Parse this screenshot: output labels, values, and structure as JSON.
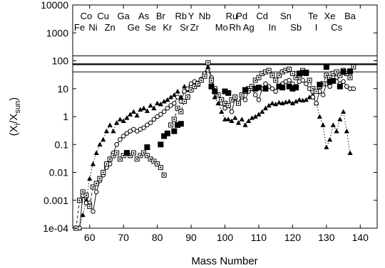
{
  "chart_data": {
    "type": "scatter",
    "title": "",
    "xlabel": "Mass Number",
    "ylabel_parts": [
      "(X",
      "i",
      "/X",
      "sun",
      ")"
    ],
    "xlim": [
      55,
      145
    ],
    "ylim": [
      0.0001,
      10000
    ],
    "yscale": "log",
    "x_ticks": [
      60,
      70,
      80,
      90,
      100,
      110,
      120,
      130,
      140
    ],
    "y_ticks": [
      {
        "value": 0.0001,
        "label": "1e-04"
      },
      {
        "value": 0.001,
        "label": "0.001"
      },
      {
        "value": 0.01,
        "label": "0.01"
      },
      {
        "value": 0.1,
        "label": "0.1"
      },
      {
        "value": 1,
        "label": "1"
      },
      {
        "value": 10,
        "label": "10"
      },
      {
        "value": 100,
        "label": "100"
      },
      {
        "value": 1000,
        "label": "1000"
      },
      {
        "value": 10000,
        "label": "10000"
      }
    ],
    "reference_lines": [
      {
        "y": 150,
        "weight": "thin"
      },
      {
        "y": 75,
        "weight": "thick"
      },
      {
        "y": 40,
        "weight": "thin"
      }
    ],
    "element_labels": [
      {
        "symbol": "Co",
        "x": 59,
        "row": 1
      },
      {
        "symbol": "Fe",
        "x": 57,
        "row": 2
      },
      {
        "symbol": "Ni",
        "x": 61,
        "row": 2
      },
      {
        "symbol": "Cu",
        "x": 64,
        "row": 1
      },
      {
        "symbol": "Zn",
        "x": 66,
        "row": 2
      },
      {
        "symbol": "Ga",
        "x": 70,
        "row": 1
      },
      {
        "symbol": "Ge",
        "x": 73,
        "row": 2
      },
      {
        "symbol": "As",
        "x": 76,
        "row": 1
      },
      {
        "symbol": "Se",
        "x": 78,
        "row": 2
      },
      {
        "symbol": "Br",
        "x": 81,
        "row": 1
      },
      {
        "symbol": "Kr",
        "x": 83,
        "row": 2
      },
      {
        "symbol": "Rb",
        "x": 87,
        "row": 1
      },
      {
        "symbol": "Sr",
        "x": 88,
        "row": 2
      },
      {
        "symbol": "Y",
        "x": 90,
        "row": 1
      },
      {
        "symbol": "Zr",
        "x": 91,
        "row": 2
      },
      {
        "symbol": "Nb",
        "x": 94,
        "row": 1
      },
      {
        "symbol": "Mo",
        "x": 99,
        "row": 2
      },
      {
        "symbol": "Ru",
        "x": 102,
        "row": 1
      },
      {
        "symbol": "Rh",
        "x": 103,
        "row": 2
      },
      {
        "symbol": "Pd",
        "x": 105,
        "row": 1
      },
      {
        "symbol": "Ag",
        "x": 107,
        "row": 2
      },
      {
        "symbol": "Cd",
        "x": 111,
        "row": 1
      },
      {
        "symbol": "In",
        "x": 114,
        "row": 2
      },
      {
        "symbol": "Sn",
        "x": 118,
        "row": 1
      },
      {
        "symbol": "Sb",
        "x": 121,
        "row": 2
      },
      {
        "symbol": "Te",
        "x": 126,
        "row": 1
      },
      {
        "symbol": "I",
        "x": 127,
        "row": 2
      },
      {
        "symbol": "Xe",
        "x": 131,
        "row": 1
      },
      {
        "symbol": "Cs",
        "x": 133,
        "row": 2
      },
      {
        "symbol": "Ba",
        "x": 137,
        "row": 1
      }
    ],
    "series": [
      {
        "marker": "triangle-filled",
        "line": "dotted",
        "points": [
          [
            56,
            0.0001
          ],
          [
            57,
            0.0001
          ],
          [
            58,
            0.0003
          ],
          [
            59,
            0.001
          ],
          [
            60,
            0.006
          ],
          [
            61,
            0.02
          ],
          [
            62,
            0.05
          ],
          [
            63,
            0.1
          ],
          [
            64,
            0.15
          ],
          [
            65,
            0.3
          ],
          [
            66,
            0.5
          ],
          [
            67,
            0.3
          ],
          [
            68,
            0.6
          ],
          [
            69,
            0.8
          ],
          [
            70,
            0.7
          ],
          [
            71,
            0.9
          ],
          [
            72,
            1.2
          ],
          [
            73,
            1.5
          ],
          [
            74,
            1.1
          ],
          [
            75,
            1.8
          ],
          [
            76,
            2.0
          ],
          [
            77,
            1.6
          ],
          [
            78,
            2.5
          ],
          [
            79,
            2.0
          ],
          [
            80,
            3.0
          ],
          [
            81,
            2.8
          ],
          [
            82,
            3.5
          ],
          [
            83,
            4.0
          ],
          [
            84,
            5.0
          ],
          [
            85,
            6.0
          ],
          [
            86,
            8.0
          ],
          [
            87,
            5.0
          ],
          [
            88,
            12
          ],
          [
            89,
            9
          ],
          [
            90,
            15
          ],
          [
            91,
            18
          ],
          [
            92,
            14
          ],
          [
            93,
            20
          ],
          [
            94,
            30
          ],
          [
            95,
            60
          ],
          [
            96,
            12
          ],
          [
            97,
            5
          ],
          [
            98,
            3
          ],
          [
            99,
            1.5
          ],
          [
            100,
            0.8
          ],
          [
            101,
            0.8
          ],
          [
            102,
            0.7
          ],
          [
            103,
            0.9
          ],
          [
            104,
            0.6
          ],
          [
            105,
            0.8
          ],
          [
            106,
            0.5
          ],
          [
            107,
            0.7
          ],
          [
            108,
            0.9
          ],
          [
            109,
            1.0
          ],
          [
            110,
            1.2
          ],
          [
            111,
            1.5
          ],
          [
            112,
            2.0
          ],
          [
            113,
            2.5
          ],
          [
            114,
            3.0
          ],
          [
            115,
            2.8
          ],
          [
            116,
            3.2
          ],
          [
            117,
            3.0
          ],
          [
            118,
            3.3
          ],
          [
            119,
            3.5
          ],
          [
            120,
            3.0
          ],
          [
            121,
            3.5
          ],
          [
            122,
            4.0
          ],
          [
            123,
            3.8
          ],
          [
            124,
            4.0
          ],
          [
            125,
            5.0
          ],
          [
            126,
            6.0
          ],
          [
            127,
            3.0
          ],
          [
            128,
            1.0
          ],
          [
            129,
            0.5
          ],
          [
            130,
            0.08
          ],
          [
            131,
            0.15
          ],
          [
            132,
            0.5
          ],
          [
            133,
            0.3
          ],
          [
            134,
            0.8
          ],
          [
            135,
            1.5
          ],
          [
            136,
            0.3
          ],
          [
            137,
            0.05
          ]
        ]
      },
      {
        "marker": "circle-open",
        "line": "solid",
        "points": [
          [
            56,
            0.0001
          ],
          [
            57,
            0.0001
          ],
          [
            58,
            0.0015
          ],
          [
            59,
            0.0008
          ],
          [
            60,
            0.0008
          ],
          [
            61,
            0.0004
          ],
          [
            62,
            0.002
          ],
          [
            63,
            0.005
          ],
          [
            64,
            0.008
          ],
          [
            65,
            0.015
          ],
          [
            66,
            0.02
          ],
          [
            67,
            0.05
          ],
          [
            68,
            0.1
          ],
          [
            69,
            0.15
          ],
          [
            70,
            0.2
          ],
          [
            71,
            0.25
          ],
          [
            72,
            0.3
          ],
          [
            73,
            0.35
          ],
          [
            74,
            0.3
          ],
          [
            75,
            0.35
          ],
          [
            76,
            0.4
          ],
          [
            77,
            0.5
          ],
          [
            78,
            0.6
          ],
          [
            79,
            0.8
          ],
          [
            80,
            1.0
          ],
          [
            81,
            1.2
          ],
          [
            82,
            1.5
          ],
          [
            83,
            2.0
          ],
          [
            84,
            2.5
          ],
          [
            85,
            3.0
          ],
          [
            86,
            5.0
          ],
          [
            87,
            3.5
          ],
          [
            88,
            8.0
          ],
          [
            89,
            10
          ],
          [
            90,
            15
          ],
          [
            91,
            18
          ],
          [
            92,
            16
          ],
          [
            93,
            22
          ],
          [
            94,
            35
          ],
          [
            95,
            80
          ],
          [
            96,
            25
          ],
          [
            97,
            8
          ],
          [
            98,
            6
          ],
          [
            99,
            3
          ],
          [
            100,
            2
          ],
          [
            101,
            2.5
          ],
          [
            102,
            1.5
          ],
          [
            103,
            4.5
          ],
          [
            104,
            3
          ],
          [
            105,
            5
          ],
          [
            106,
            4
          ],
          [
            107,
            8
          ],
          [
            108,
            10
          ],
          [
            109,
            6
          ],
          [
            110,
            4
          ],
          [
            111,
            10
          ],
          [
            112,
            15
          ],
          [
            113,
            12
          ],
          [
            114,
            10
          ],
          [
            115,
            8
          ],
          [
            116,
            12
          ],
          [
            117,
            15
          ],
          [
            118,
            18
          ],
          [
            119,
            20
          ],
          [
            120,
            15
          ],
          [
            121,
            12
          ],
          [
            122,
            18
          ],
          [
            123,
            20
          ],
          [
            124,
            15
          ],
          [
            125,
            10
          ],
          [
            126,
            5
          ],
          [
            127,
            3
          ],
          [
            128,
            8
          ],
          [
            129,
            6
          ],
          [
            130,
            15
          ],
          [
            131,
            12
          ],
          [
            132,
            20
          ],
          [
            133,
            25
          ],
          [
            134,
            15
          ],
          [
            135,
            18
          ],
          [
            136,
            12
          ],
          [
            137,
            10
          ],
          [
            138,
            10
          ]
        ]
      },
      {
        "marker": "square-dotted",
        "line": "dashed",
        "points": [
          [
            56,
            0.0001
          ],
          [
            57,
            0.001
          ],
          [
            58,
            0.002
          ],
          [
            59,
            0.0015
          ],
          [
            60,
            0.0006
          ],
          [
            61,
            0.003
          ],
          [
            62,
            0.004
          ],
          [
            63,
            0.006
          ],
          [
            64,
            0.01
          ],
          [
            65,
            0.02
          ],
          [
            66,
            0.03
          ],
          [
            67,
            0.04
          ],
          [
            68,
            0.05
          ],
          [
            69,
            0.03
          ],
          [
            70,
            0.04
          ],
          [
            71,
            0.05
          ],
          [
            72,
            0.04
          ],
          [
            73,
            0.05
          ],
          [
            74,
            0.03
          ],
          [
            75,
            0.04
          ],
          [
            76,
            0.05
          ],
          [
            77,
            0.04
          ],
          [
            78,
            0.03
          ],
          [
            79,
            0.025
          ],
          [
            80,
            0.02
          ],
          [
            81,
            0.015
          ],
          [
            82,
            0.008
          ],
          [
            84,
            0.5
          ],
          [
            85,
            0.8
          ],
          [
            86,
            2.0
          ],
          [
            87,
            1.5
          ],
          [
            88,
            3.5
          ],
          [
            89,
            5
          ],
          [
            90,
            9
          ],
          [
            91,
            12
          ],
          [
            92,
            15
          ],
          [
            93,
            20
          ],
          [
            94,
            28
          ],
          [
            95,
            85
          ],
          [
            96,
            20
          ],
          [
            97,
            10
          ],
          [
            98,
            6
          ],
          [
            99,
            4
          ],
          [
            100,
            3
          ],
          [
            101,
            2.5
          ],
          [
            102,
            4
          ],
          [
            103,
            5
          ],
          [
            104,
            3
          ],
          [
            105,
            6
          ],
          [
            106,
            8
          ],
          [
            107,
            10
          ],
          [
            108,
            12
          ],
          [
            109,
            20
          ],
          [
            110,
            25
          ],
          [
            111,
            35
          ],
          [
            112,
            40
          ],
          [
            113,
            45
          ],
          [
            114,
            30
          ],
          [
            115,
            20
          ],
          [
            116,
            30
          ],
          [
            117,
            40
          ],
          [
            118,
            45
          ],
          [
            119,
            50
          ],
          [
            120,
            35
          ],
          [
            121,
            25
          ],
          [
            122,
            30
          ],
          [
            123,
            45
          ],
          [
            124,
            35
          ],
          [
            125,
            20
          ],
          [
            126,
            10
          ],
          [
            127,
            8
          ],
          [
            128,
            12
          ],
          [
            129,
            15
          ],
          [
            130,
            30
          ],
          [
            131,
            25
          ],
          [
            132,
            35
          ],
          [
            133,
            40
          ],
          [
            134,
            30
          ],
          [
            135,
            45
          ],
          [
            136,
            35
          ],
          [
            137,
            25
          ],
          [
            138,
            60
          ]
        ]
      },
      {
        "marker": "square-filled",
        "line": "none",
        "points": [
          [
            71,
            0.05
          ],
          [
            77,
            0.08
          ],
          [
            81,
            0.1
          ],
          [
            82,
            0.2
          ],
          [
            83,
            0.25
          ],
          [
            85,
            0.3
          ],
          [
            86,
            0.5
          ],
          [
            87,
            0.55
          ],
          [
            96,
            12
          ],
          [
            97,
            8
          ],
          [
            100,
            8
          ],
          [
            101,
            7
          ],
          [
            106,
            9
          ],
          [
            109,
            10
          ],
          [
            110,
            11
          ],
          [
            112,
            10
          ],
          [
            116,
            12
          ],
          [
            117,
            11
          ],
          [
            119,
            12
          ],
          [
            120,
            10
          ],
          [
            121,
            11
          ],
          [
            122,
            35
          ],
          [
            123,
            37
          ],
          [
            124,
            38
          ],
          [
            128,
            14
          ],
          [
            130,
            60
          ],
          [
            131,
            18
          ],
          [
            132,
            19
          ],
          [
            134,
            12
          ],
          [
            135,
            40
          ],
          [
            137,
            42
          ]
        ]
      }
    ]
  }
}
